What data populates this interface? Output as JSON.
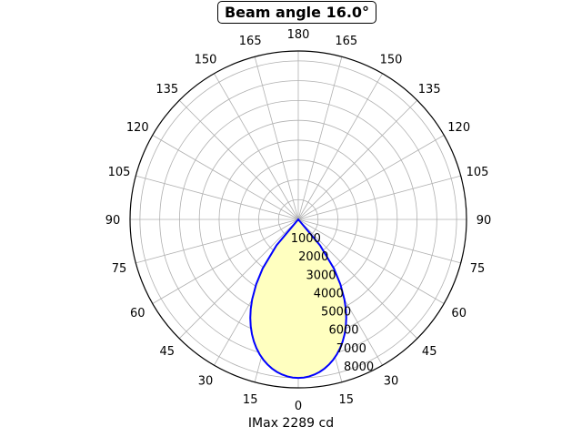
{
  "chart_data": {
    "type": "polar-line",
    "title": "Beam angle 16.0°",
    "xlabel": "IMax 2289 cd",
    "angle_ticks": [
      {
        "label": "0",
        "angle": 0
      },
      {
        "label": "15",
        "angle": 15
      },
      {
        "label": "30",
        "angle": 30
      },
      {
        "label": "45",
        "angle": 45
      },
      {
        "label": "60",
        "angle": 60
      },
      {
        "label": "75",
        "angle": 75
      },
      {
        "label": "90",
        "angle": 90
      },
      {
        "label": "105",
        "angle": 105
      },
      {
        "label": "120",
        "angle": 120
      },
      {
        "label": "135",
        "angle": 135
      },
      {
        "label": "150",
        "angle": 150
      },
      {
        "label": "165",
        "angle": 165
      },
      {
        "label": "180",
        "angle": 180
      },
      {
        "label": "165",
        "angle": -165
      },
      {
        "label": "150",
        "angle": -150
      },
      {
        "label": "135",
        "angle": -135
      },
      {
        "label": "120",
        "angle": -120
      },
      {
        "label": "105",
        "angle": -105
      },
      {
        "label": "90",
        "angle": -90
      },
      {
        "label": "75",
        "angle": -75
      },
      {
        "label": "60",
        "angle": -60
      },
      {
        "label": "45",
        "angle": -45
      },
      {
        "label": "30",
        "angle": -30
      },
      {
        "label": "15",
        "angle": -15
      }
    ],
    "radial_ticks": [
      1000,
      2000,
      3000,
      4000,
      5000,
      6000,
      7000,
      8000
    ],
    "rlim": [
      0,
      8500
    ],
    "grid": true,
    "series": [
      {
        "angles": [
          0,
          2,
          4,
          6,
          8,
          10,
          12,
          14,
          16,
          18,
          20,
          22,
          24,
          26,
          28,
          30,
          33,
          36,
          40,
          45,
          90
        ],
        "values": [
          8000,
          7986,
          7943,
          7871,
          7771,
          7642,
          7484,
          7297,
          7081,
          6835,
          6557,
          6248,
          5906,
          5530,
          5116,
          4663,
          3908,
          3060,
          1710,
          0,
          0
        ],
        "color": "#0000ff",
        "fill": "#ffffc0"
      }
    ]
  }
}
